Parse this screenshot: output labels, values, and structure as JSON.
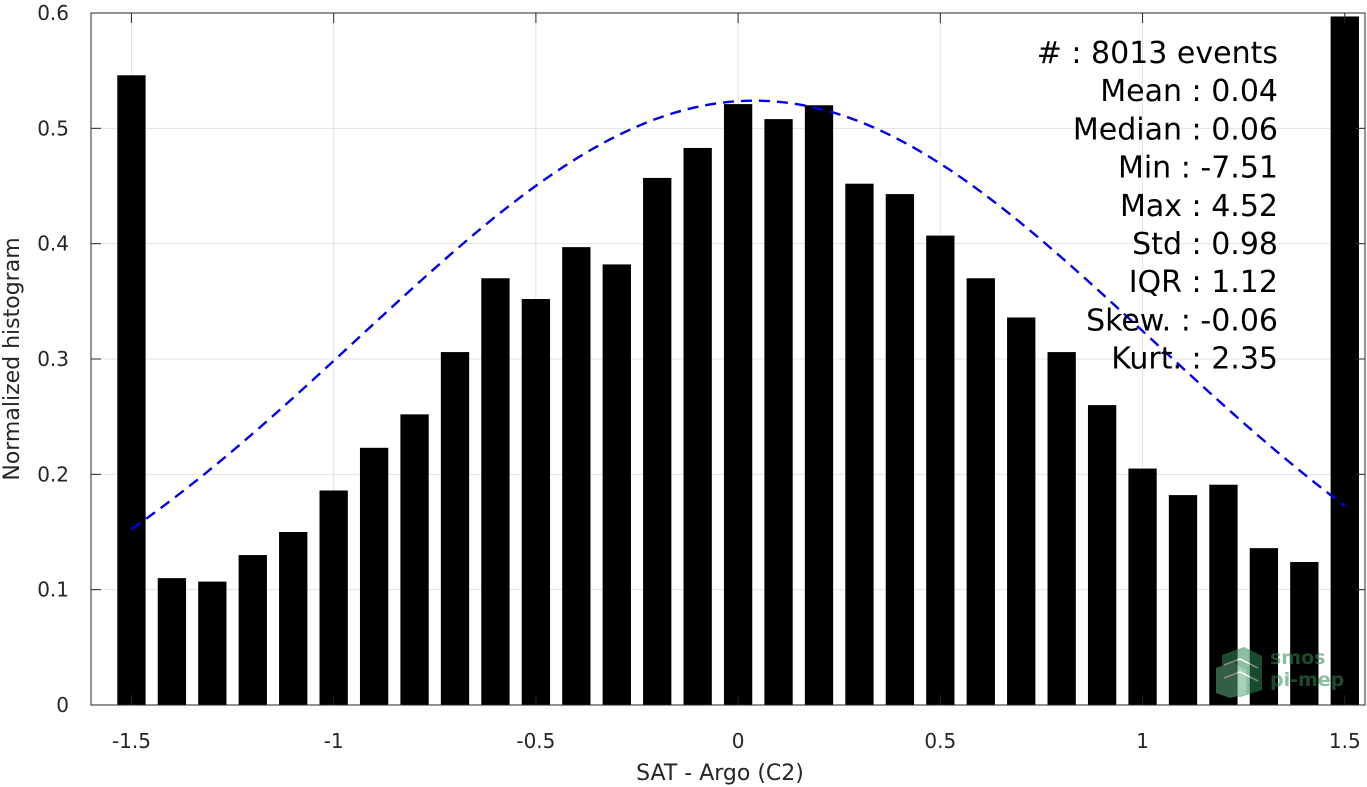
{
  "chart_data": {
    "type": "bar",
    "xlabel": "SAT - Argo (C2)",
    "ylabel": "Normalized histogram",
    "xlim": [
      -1.6,
      1.55
    ],
    "ylim": [
      0,
      0.6
    ],
    "grid": true,
    "x_ticks": [
      {
        "value": -1.5,
        "label": "-1.5"
      },
      {
        "value": -1,
        "label": "-1"
      },
      {
        "value": -0.5,
        "label": "-0.5"
      },
      {
        "value": 0,
        "label": "0"
      },
      {
        "value": 0.5,
        "label": "0.5"
      },
      {
        "value": 1,
        "label": "1"
      },
      {
        "value": 1.5,
        "label": "1.5"
      }
    ],
    "y_ticks": [
      {
        "value": 0,
        "label": "0"
      },
      {
        "value": 0.1,
        "label": "0.1"
      },
      {
        "value": 0.2,
        "label": "0.2"
      },
      {
        "value": 0.3,
        "label": "0.3"
      },
      {
        "value": 0.4,
        "label": "0.4"
      },
      {
        "value": 0.5,
        "label": "0.5"
      },
      {
        "value": 0.6,
        "label": "0.6"
      }
    ],
    "bin_width": 0.1,
    "bins": [
      {
        "x": -1.5,
        "y": 0.546
      },
      {
        "x": -1.4,
        "y": 0.11
      },
      {
        "x": -1.3,
        "y": 0.107
      },
      {
        "x": -1.2,
        "y": 0.13
      },
      {
        "x": -1.1,
        "y": 0.15
      },
      {
        "x": -1.0,
        "y": 0.186
      },
      {
        "x": -0.9,
        "y": 0.223
      },
      {
        "x": -0.8,
        "y": 0.252
      },
      {
        "x": -0.7,
        "y": 0.306
      },
      {
        "x": -0.6,
        "y": 0.37
      },
      {
        "x": -0.5,
        "y": 0.352
      },
      {
        "x": -0.4,
        "y": 0.397
      },
      {
        "x": -0.3,
        "y": 0.382
      },
      {
        "x": -0.2,
        "y": 0.457
      },
      {
        "x": -0.1,
        "y": 0.483
      },
      {
        "x": 0.0,
        "y": 0.521
      },
      {
        "x": 0.1,
        "y": 0.508
      },
      {
        "x": 0.2,
        "y": 0.52
      },
      {
        "x": 0.3,
        "y": 0.452
      },
      {
        "x": 0.4,
        "y": 0.443
      },
      {
        "x": 0.5,
        "y": 0.407
      },
      {
        "x": 0.6,
        "y": 0.37
      },
      {
        "x": 0.7,
        "y": 0.336
      },
      {
        "x": 0.8,
        "y": 0.306
      },
      {
        "x": 0.9,
        "y": 0.26
      },
      {
        "x": 1.0,
        "y": 0.205
      },
      {
        "x": 1.1,
        "y": 0.182
      },
      {
        "x": 1.2,
        "y": 0.191
      },
      {
        "x": 1.3,
        "y": 0.136
      },
      {
        "x": 1.4,
        "y": 0.124
      },
      {
        "x": 1.5,
        "y": 0.597
      }
    ],
    "fit_curve": {
      "style": "dashed",
      "color": "#0000ee",
      "mean": 0.04,
      "std": 0.98,
      "peak": 0.524,
      "x_range": [
        -1.5,
        1.5
      ]
    },
    "bar_color": "#000000",
    "stats": [
      {
        "label": "#",
        "sep": " : ",
        "value": "8013 events"
      },
      {
        "label": "Mean",
        "sep": " : ",
        "value": "0.04"
      },
      {
        "label": "Median",
        "sep": " : ",
        "value": "0.06"
      },
      {
        "label": "Min",
        "sep": " : ",
        "value": "-7.51"
      },
      {
        "label": "Max",
        "sep": " : ",
        "value": "4.52"
      },
      {
        "label": "Std",
        "sep": " : ",
        "value": "0.98"
      },
      {
        "label": "IQR",
        "sep": " : ",
        "value": "1.12"
      },
      {
        "label": "Skew.",
        "sep": " : ",
        "value": "-0.06"
      },
      {
        "label": "Kurt.",
        "sep": " : ",
        "value": "2.35"
      }
    ]
  },
  "watermark": {
    "line1": "smos",
    "line2": "pi-mep",
    "color": "#2e8b57"
  }
}
